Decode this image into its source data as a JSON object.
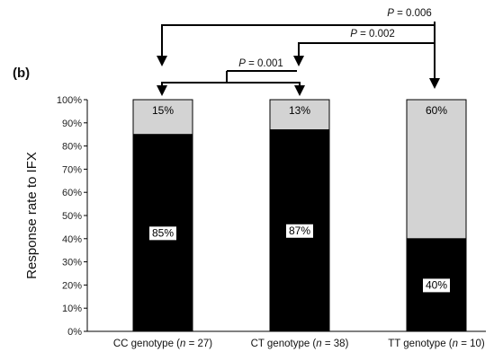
{
  "panel_label": "(b)",
  "chart_data": {
    "type": "bar",
    "stacked": true,
    "ylabel": "Response rate to IFX",
    "ylim": [
      0,
      100
    ],
    "yticks": [
      "0%",
      "10%",
      "20%",
      "30%",
      "40%",
      "50%",
      "60%",
      "70%",
      "80%",
      "90%",
      "100%"
    ],
    "categories": [
      {
        "prefix": "CC genotype (",
        "n_label": "n",
        "n_value": " = 27)"
      },
      {
        "prefix": "CT genotype (",
        "n_label": "n",
        "n_value": " = 38)"
      },
      {
        "prefix": "TT genotype (",
        "n_label": "n",
        "n_value": " = 10)"
      }
    ],
    "series": [
      {
        "values": [
          85,
          87,
          40
        ],
        "labels": [
          "85%",
          "87%",
          "40%"
        ],
        "color": "#000000"
      },
      {
        "values": [
          15,
          13,
          60
        ],
        "labels": [
          "15%",
          "13%",
          "60%"
        ],
        "color": "#d3d3d3"
      }
    ],
    "comparisons": [
      {
        "p_label": "P",
        "p_value": " = 0.006",
        "from": 0,
        "to": 2
      },
      {
        "p_label": "P",
        "p_value": " = 0.002",
        "from": 1,
        "to": 2
      },
      {
        "p_label": "P",
        "p_value": " = 0.001",
        "from": 0,
        "to": 1
      }
    ]
  }
}
